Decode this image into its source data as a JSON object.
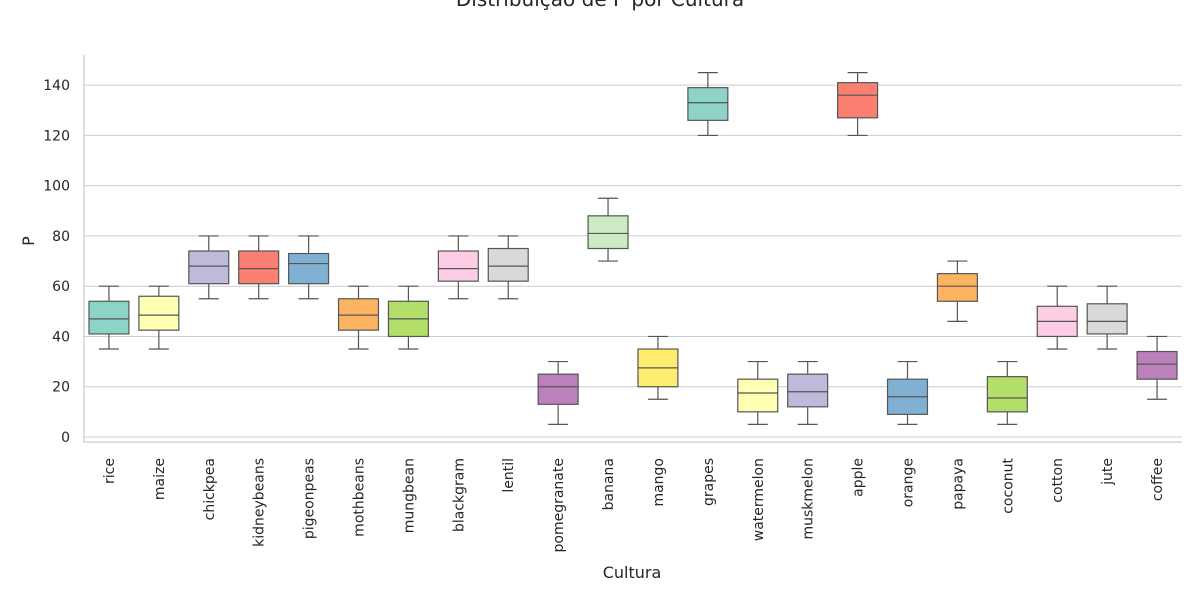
{
  "chart_data": {
    "type": "box",
    "title": "Distribuição de P por Cultura",
    "xlabel": "Cultura",
    "ylabel": "P",
    "ylim": [
      -2,
      152
    ],
    "yticks": [
      0,
      20,
      40,
      60,
      80,
      100,
      120,
      140
    ],
    "grid": "horizontal",
    "legend": "none",
    "categories": [
      "rice",
      "maize",
      "chickpea",
      "kidneybeans",
      "pigeonpeas",
      "mothbeans",
      "mungbean",
      "blackgram",
      "lentil",
      "pomegranate",
      "banana",
      "mango",
      "grapes",
      "watermelon",
      "muskmelon",
      "apple",
      "orange",
      "papaya",
      "coconut",
      "cotton",
      "jute",
      "coffee"
    ],
    "boxes": [
      {
        "min": 35,
        "q1": 41,
        "median": 47,
        "q3": 54,
        "max": 60,
        "color": "#8dd3c7"
      },
      {
        "min": 35,
        "q1": 42.5,
        "median": 48.5,
        "q3": 56,
        "max": 60,
        "color": "#ffffb3"
      },
      {
        "min": 55,
        "q1": 61,
        "median": 68,
        "q3": 74,
        "max": 80,
        "color": "#bebada"
      },
      {
        "min": 55,
        "q1": 61,
        "median": 67,
        "q3": 74,
        "max": 80,
        "color": "#fb8072"
      },
      {
        "min": 55,
        "q1": 61,
        "median": 69,
        "q3": 73,
        "max": 80,
        "color": "#80b1d3"
      },
      {
        "min": 35,
        "q1": 42.5,
        "median": 48.5,
        "q3": 55,
        "max": 60,
        "color": "#fdb462"
      },
      {
        "min": 35,
        "q1": 40,
        "median": 47,
        "q3": 54,
        "max": 60,
        "color": "#b3de69"
      },
      {
        "min": 55,
        "q1": 62,
        "median": 67,
        "q3": 74,
        "max": 80,
        "color": "#fccde5"
      },
      {
        "min": 55,
        "q1": 62,
        "median": 68,
        "q3": 75,
        "max": 80,
        "color": "#d9d9d9"
      },
      {
        "min": 5,
        "q1": 13,
        "median": 20,
        "q3": 25,
        "max": 30,
        "color": "#bc80bd"
      },
      {
        "min": 70,
        "q1": 75,
        "median": 81,
        "q3": 88,
        "max": 95,
        "color": "#ccebc5"
      },
      {
        "min": 15,
        "q1": 20,
        "median": 27.5,
        "q3": 35,
        "max": 40,
        "color": "#ffed6f"
      },
      {
        "min": 120,
        "q1": 126,
        "median": 133,
        "q3": 139,
        "max": 145,
        "color": "#8dd3c7"
      },
      {
        "min": 5,
        "q1": 10,
        "median": 17.5,
        "q3": 23,
        "max": 30,
        "color": "#ffffb3"
      },
      {
        "min": 5,
        "q1": 12,
        "median": 18,
        "q3": 25,
        "max": 30,
        "color": "#bebada"
      },
      {
        "min": 120,
        "q1": 127,
        "median": 136,
        "q3": 141,
        "max": 145,
        "color": "#fb8072"
      },
      {
        "min": 5,
        "q1": 9,
        "median": 16,
        "q3": 23,
        "max": 30,
        "color": "#80b1d3"
      },
      {
        "min": 46,
        "q1": 54,
        "median": 60,
        "q3": 65,
        "max": 70,
        "color": "#fdb462"
      },
      {
        "min": 5,
        "q1": 10,
        "median": 15.5,
        "q3": 24,
        "max": 30,
        "color": "#b3de69"
      },
      {
        "min": 35,
        "q1": 40,
        "median": 46,
        "q3": 52,
        "max": 60,
        "color": "#fccde5"
      },
      {
        "min": 35,
        "q1": 41,
        "median": 46,
        "q3": 53,
        "max": 60,
        "color": "#d9d9d9"
      },
      {
        "min": 15,
        "q1": 23,
        "median": 29,
        "q3": 34,
        "max": 40,
        "color": "#bc80bd"
      }
    ]
  }
}
